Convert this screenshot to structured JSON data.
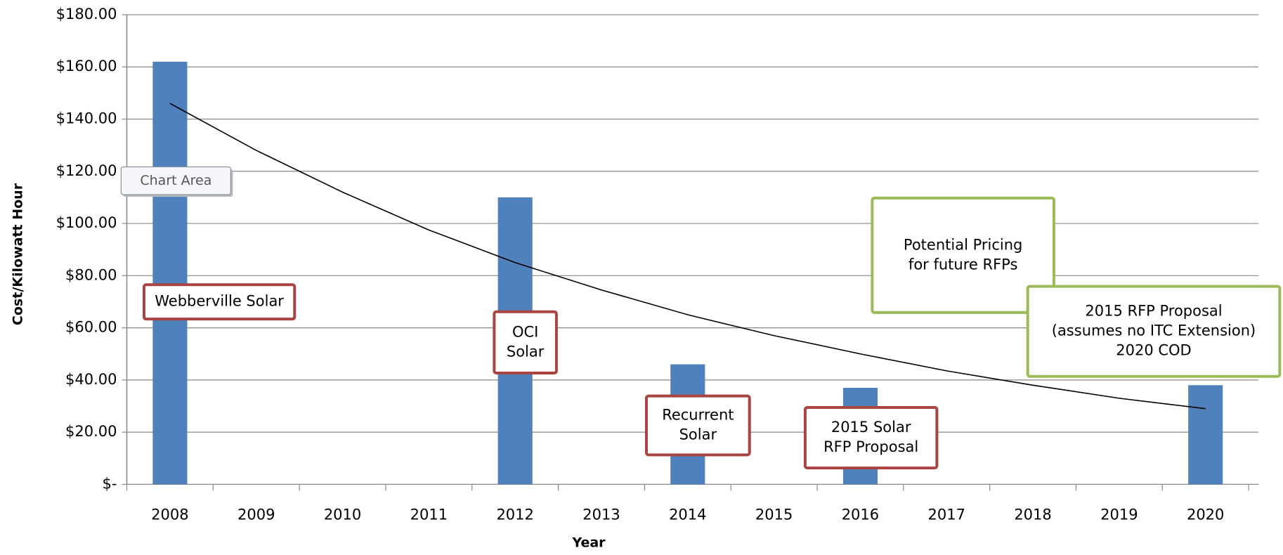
{
  "chart_data": {
    "type": "bar",
    "y_label": "Cost/Kilowatt Hour",
    "x_label": "Year",
    "categories": [
      "2008",
      "2009",
      "2010",
      "2011",
      "2012",
      "2013",
      "2014",
      "2015",
      "2016",
      "2017",
      "2018",
      "2019",
      "2020"
    ],
    "values": [
      162,
      null,
      null,
      null,
      110,
      null,
      46,
      null,
      37,
      null,
      null,
      null,
      38
    ],
    "color": "#4f81bd",
    "trendline": {
      "color": "#000000",
      "values": [
        146,
        128,
        112,
        97.5,
        85,
        74.5,
        65,
        57,
        50,
        43.5,
        38,
        33,
        29
      ]
    },
    "ylim": [
      0,
      180
    ],
    "yticks": [
      {
        "value": 0,
        "label": "$-"
      },
      {
        "value": 20,
        "label": "$20.00"
      },
      {
        "value": 40,
        "label": "$40.00"
      },
      {
        "value": 60,
        "label": "$60.00"
      },
      {
        "value": 80,
        "label": "$80.00"
      },
      {
        "value": 100,
        "label": "$100.00"
      },
      {
        "value": 120,
        "label": "$120.00"
      },
      {
        "value": 140,
        "label": "$140.00"
      },
      {
        "value": 160,
        "label": "$160.00"
      },
      {
        "value": 180,
        "label": "$180.00"
      }
    ],
    "grid": true,
    "annotations": [
      {
        "lines": [
          "Webberville Solar"
        ],
        "color": "#a94442"
      },
      {
        "lines": [
          "OCI",
          "Solar"
        ],
        "color": "#a94442"
      },
      {
        "lines": [
          "Recurrent",
          "Solar"
        ],
        "color": "#a94442"
      },
      {
        "lines": [
          "2015 Solar",
          "RFP Proposal"
        ],
        "color": "#a94442"
      },
      {
        "lines": [
          "Potential Pricing",
          "for future RFPs"
        ],
        "color": "#9bbb59"
      },
      {
        "lines": [
          "2015 RFP Proposal",
          "(assumes no ITC Extension)",
          "2020 COD"
        ],
        "color": "#9bbb59"
      }
    ],
    "tooltip": "Chart Area"
  }
}
